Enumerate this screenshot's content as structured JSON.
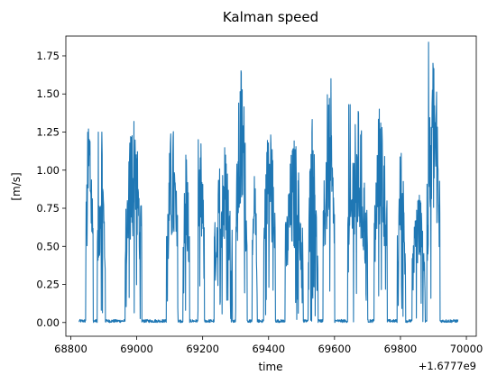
{
  "chart_data": {
    "type": "line",
    "title": "Kalman speed",
    "xlabel": "time",
    "ylabel": "[m/s]",
    "x_offset_label": "+1.6777e9",
    "xlim": [
      68785,
      70030
    ],
    "ylim": [
      -0.09,
      1.88
    ],
    "xticks": [
      68800,
      69000,
      69200,
      69400,
      69600,
      69800,
      70000
    ],
    "yticks": [
      0.0,
      0.25,
      0.5,
      0.75,
      1.0,
      1.25,
      1.5,
      1.75
    ],
    "ytick_labels": [
      "0.00",
      "0.25",
      "0.50",
      "0.75",
      "1.00",
      "1.25",
      "1.50",
      "1.75"
    ],
    "grid": false,
    "series": [
      {
        "color": "#1f77b4",
        "bursts": [
          {
            "start": 68845,
            "end": 68868,
            "peak": 1.5
          },
          {
            "start": 68880,
            "end": 68905,
            "peak": 1.25
          },
          {
            "start": 68965,
            "end": 69015,
            "peak": 1.41
          },
          {
            "start": 69090,
            "end": 69125,
            "peak": 1.33
          },
          {
            "start": 69140,
            "end": 69160,
            "peak": 1.23
          },
          {
            "start": 69185,
            "end": 69205,
            "peak": 1.2
          },
          {
            "start": 69235,
            "end": 69290,
            "peak": 1.22
          },
          {
            "start": 69300,
            "end": 69335,
            "peak": 1.73
          },
          {
            "start": 69350,
            "end": 69365,
            "peak": 1.0
          },
          {
            "start": 69385,
            "end": 69420,
            "peak": 1.44
          },
          {
            "start": 69450,
            "end": 69505,
            "peak": 1.22
          },
          {
            "start": 69520,
            "end": 69550,
            "peak": 1.46
          },
          {
            "start": 69565,
            "end": 69600,
            "peak": 1.6
          },
          {
            "start": 69640,
            "end": 69700,
            "peak": 1.43
          },
          {
            "start": 69720,
            "end": 69760,
            "peak": 1.52
          },
          {
            "start": 69790,
            "end": 69815,
            "peak": 1.2
          },
          {
            "start": 69835,
            "end": 69875,
            "peak": 0.9
          },
          {
            "start": 69880,
            "end": 69920,
            "peak": 1.84
          }
        ],
        "baseline": 0.01,
        "x_start": 68825,
        "x_end": 69975
      }
    ]
  }
}
